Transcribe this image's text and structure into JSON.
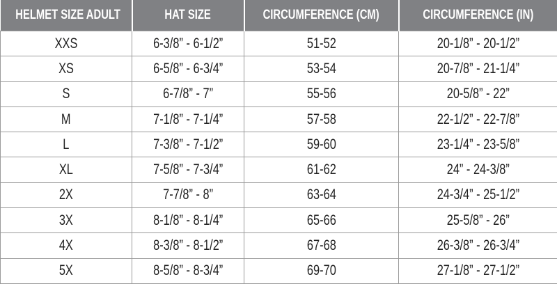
{
  "table": {
    "header": [
      "HELMET SIZE ADULT",
      "HAT SIZE",
      "CIRCUMFERENCE (CM)",
      "CIRCUMFERENCE (IN)"
    ],
    "rows": [
      [
        "XXS",
        "6-3/8” - 6-1/2”",
        "51-52",
        "20-1/8” - 20-1/2”"
      ],
      [
        "XS",
        "6-5/8” - 6-3/4”",
        "53-54",
        "20-7/8” - 21-1/4”"
      ],
      [
        "S",
        "6-7/8” - 7”",
        "55-56",
        "20-5/8” - 22”"
      ],
      [
        "M",
        "7-1/8” - 7-1/4”",
        "57-58",
        "22-1/2” - 22-7/8”"
      ],
      [
        "L",
        "7-3/8” - 7-1/2”",
        "59-60",
        "23-1/4” - 23-5/8”"
      ],
      [
        "XL",
        "7-5/8” - 7-3/4”",
        "61-62",
        "24” - 24-3/8”"
      ],
      [
        "2X",
        "7-7/8” - 8”",
        "63-64",
        "24-3/4” - 25-1/2”"
      ],
      [
        "3X",
        "8-1/8” - 8-1/4”",
        "65-66",
        "25-5/8” - 26”"
      ],
      [
        "4X",
        "8-3/8” - 8-1/2”",
        "67-68",
        "26-3/8” - 26-3/4”"
      ],
      [
        "5X",
        "8-5/8” - 8-3/4”",
        "69-70",
        "27-1/8” - 27-1/2”"
      ]
    ]
  }
}
